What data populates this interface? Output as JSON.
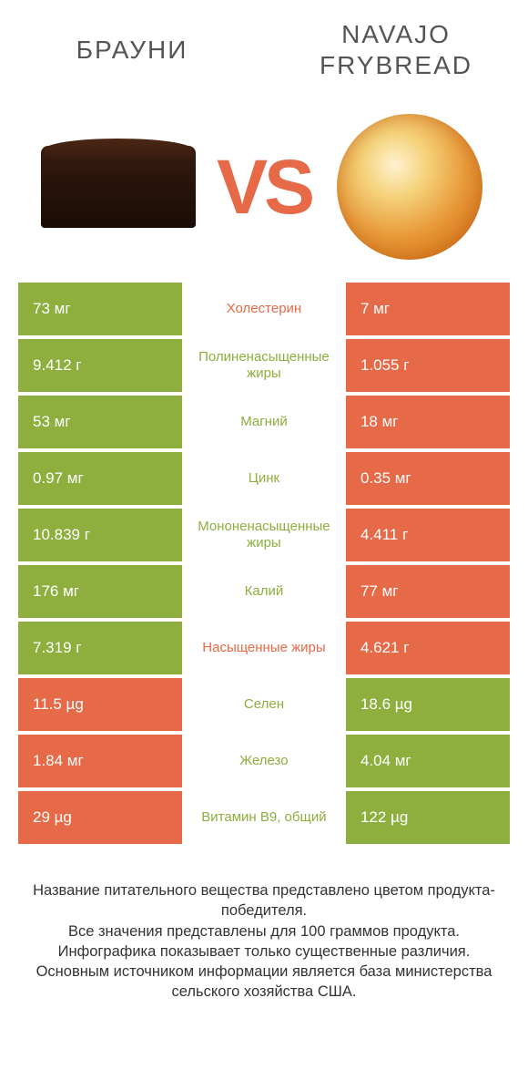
{
  "colors": {
    "green": "#8eae3e",
    "orange": "#e66a47",
    "text": "#555555",
    "footer": "#333333",
    "bg": "#ffffff"
  },
  "header": {
    "left": "БРАУНИ",
    "right": "NAVAJO FRYBREAD"
  },
  "vs_label": "VS",
  "rows": [
    {
      "left": "73 мг",
      "mid": "Холестерин",
      "right": "7 мг",
      "left_color": "green",
      "mid_color": "orange",
      "right_color": "orange"
    },
    {
      "left": "9.412 г",
      "mid": "Полиненасыщенные жиры",
      "right": "1.055 г",
      "left_color": "green",
      "mid_color": "green",
      "right_color": "orange"
    },
    {
      "left": "53 мг",
      "mid": "Магний",
      "right": "18 мг",
      "left_color": "green",
      "mid_color": "green",
      "right_color": "orange"
    },
    {
      "left": "0.97 мг",
      "mid": "Цинк",
      "right": "0.35 мг",
      "left_color": "green",
      "mid_color": "green",
      "right_color": "orange"
    },
    {
      "left": "10.839 г",
      "mid": "Мононенасыщенные жиры",
      "right": "4.411 г",
      "left_color": "green",
      "mid_color": "green",
      "right_color": "orange"
    },
    {
      "left": "176 мг",
      "mid": "Калий",
      "right": "77 мг",
      "left_color": "green",
      "mid_color": "green",
      "right_color": "orange"
    },
    {
      "left": "7.319 г",
      "mid": "Насыщенные жиры",
      "right": "4.621 г",
      "left_color": "green",
      "mid_color": "orange",
      "right_color": "orange"
    },
    {
      "left": "11.5 µg",
      "mid": "Селен",
      "right": "18.6 µg",
      "left_color": "orange",
      "mid_color": "green",
      "right_color": "green"
    },
    {
      "left": "1.84 мг",
      "mid": "Железо",
      "right": "4.04 мг",
      "left_color": "orange",
      "mid_color": "green",
      "right_color": "green"
    },
    {
      "left": "29 µg",
      "mid": "Витамин B9, общий",
      "right": "122 µg",
      "left_color": "orange",
      "mid_color": "green",
      "right_color": "green"
    }
  ],
  "footer": {
    "line1": "Название питательного вещества представлено цветом продукта-победителя.",
    "line2": "Все значения представлены для 100 граммов продукта.",
    "line3": "Инфографика показывает только существенные различия.",
    "line4": "Основным источником информации является база министерства сельского хозяйства США."
  }
}
